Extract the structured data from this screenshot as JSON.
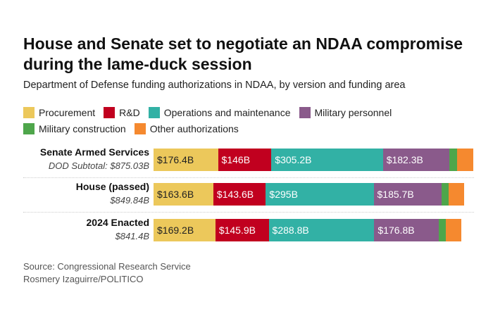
{
  "chart_data": {
    "type": "bar",
    "orientation": "horizontal",
    "stacked": true,
    "title": "House and Senate set to negotiate an NDAA compromise during the lame-duck session",
    "subtitle": "Department of Defense funding authorizations in NDAA, by version and funding area",
    "categories": [
      {
        "name": "Senate Armed Services",
        "subtotal": "DOD Subtotal: $875.03B"
      },
      {
        "name": "House (passed)",
        "subtotal": "$849.84B"
      },
      {
        "name": "2024 Enacted",
        "subtotal": "$841.4B"
      }
    ],
    "series": [
      {
        "name": "Procurement",
        "color": "#ECC85B",
        "text_color": "#222",
        "values": [
          176.4,
          163.6,
          169.2
        ],
        "labels": [
          "$176.4B",
          "$163.6B",
          "$169.2B"
        ]
      },
      {
        "name": "R&D",
        "color": "#C1001F",
        "text_color": "#fff",
        "values": [
          146,
          143.6,
          145.9
        ],
        "labels": [
          "$146B",
          "$143.6B",
          "$145.9B"
        ]
      },
      {
        "name": "Operations and maintenance",
        "color": "#32B1A5",
        "text_color": "#fff",
        "values": [
          305.2,
          295,
          288.8
        ],
        "labels": [
          "$305.2B",
          "$295B",
          "$288.8B"
        ]
      },
      {
        "name": "Military personnel",
        "color": "#8A5A8B",
        "text_color": "#fff",
        "values": [
          182.3,
          185.7,
          176.8
        ],
        "labels": [
          "$182.3B",
          "$185.7B",
          "$176.8B"
        ]
      },
      {
        "name": "Military construction",
        "color": "#4EA64B",
        "text_color": "#fff",
        "values": [
          21,
          19,
          18.5
        ],
        "labels": [
          "",
          "",
          ""
        ]
      },
      {
        "name": "Other authorizations",
        "color": "#F5892F",
        "text_color": "#fff",
        "values": [
          44.1,
          42.9,
          42.2
        ],
        "labels": [
          "",
          "",
          ""
        ]
      }
    ],
    "xlim": [
      0,
      900
    ],
    "legend": "top",
    "grid": false
  },
  "footer": {
    "source": "Source: Congressional Research Service",
    "credit": "Rosmery Izaguirre/POLITICO"
  }
}
